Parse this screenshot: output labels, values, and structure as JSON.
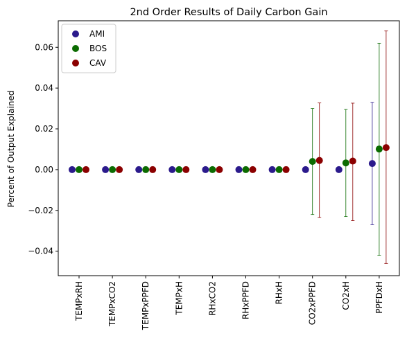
{
  "chart_data": {
    "type": "scatter",
    "title": "2nd Order Results of Daily Carbon Gain",
    "xlabel": "",
    "ylabel": "Percent of Output Explained",
    "ylim": [
      -0.052,
      0.073
    ],
    "yticks": [
      -0.04,
      -0.02,
      0.0,
      0.02,
      0.04,
      0.06
    ],
    "ytick_labels": [
      "−0.04",
      "−0.02",
      "0.00",
      "0.02",
      "0.04",
      "0.06"
    ],
    "categories": [
      "TEMPxRH",
      "TEMPxCO2",
      "TEMPxPPFD",
      "TEMPxH",
      "RHxCO2",
      "RHxPPFD",
      "RHxH",
      "CO2xPPFD",
      "CO2xH",
      "PPFDxH"
    ],
    "legend_position": "top-left",
    "grid": false,
    "series": [
      {
        "name": "AMI",
        "color": "#2b1a8c",
        "values": [
          0,
          0,
          0,
          0,
          0,
          0,
          0,
          0,
          0,
          0.003
        ],
        "errors": [
          null,
          null,
          null,
          null,
          null,
          null,
          null,
          null,
          null,
          [
            -0.027,
            0.033
          ]
        ]
      },
      {
        "name": "BOS",
        "color": "#0b6b00",
        "values": [
          0,
          0,
          0,
          0,
          0,
          0,
          0,
          0.004,
          0.0033,
          0.0101
        ],
        "errors": [
          null,
          null,
          null,
          null,
          null,
          null,
          null,
          [
            -0.022,
            0.03
          ],
          [
            -0.023,
            0.0295
          ],
          [
            -0.042,
            0.062
          ]
        ]
      },
      {
        "name": "CAV",
        "color": "#8b0000",
        "values": [
          0,
          0,
          0,
          0,
          0,
          0,
          0,
          0.0045,
          0.0042,
          0.0108
        ],
        "errors": [
          null,
          null,
          null,
          null,
          null,
          null,
          null,
          [
            -0.0235,
            0.0327
          ],
          [
            -0.025,
            0.0326
          ],
          [
            -0.046,
            0.068
          ]
        ]
      }
    ]
  }
}
